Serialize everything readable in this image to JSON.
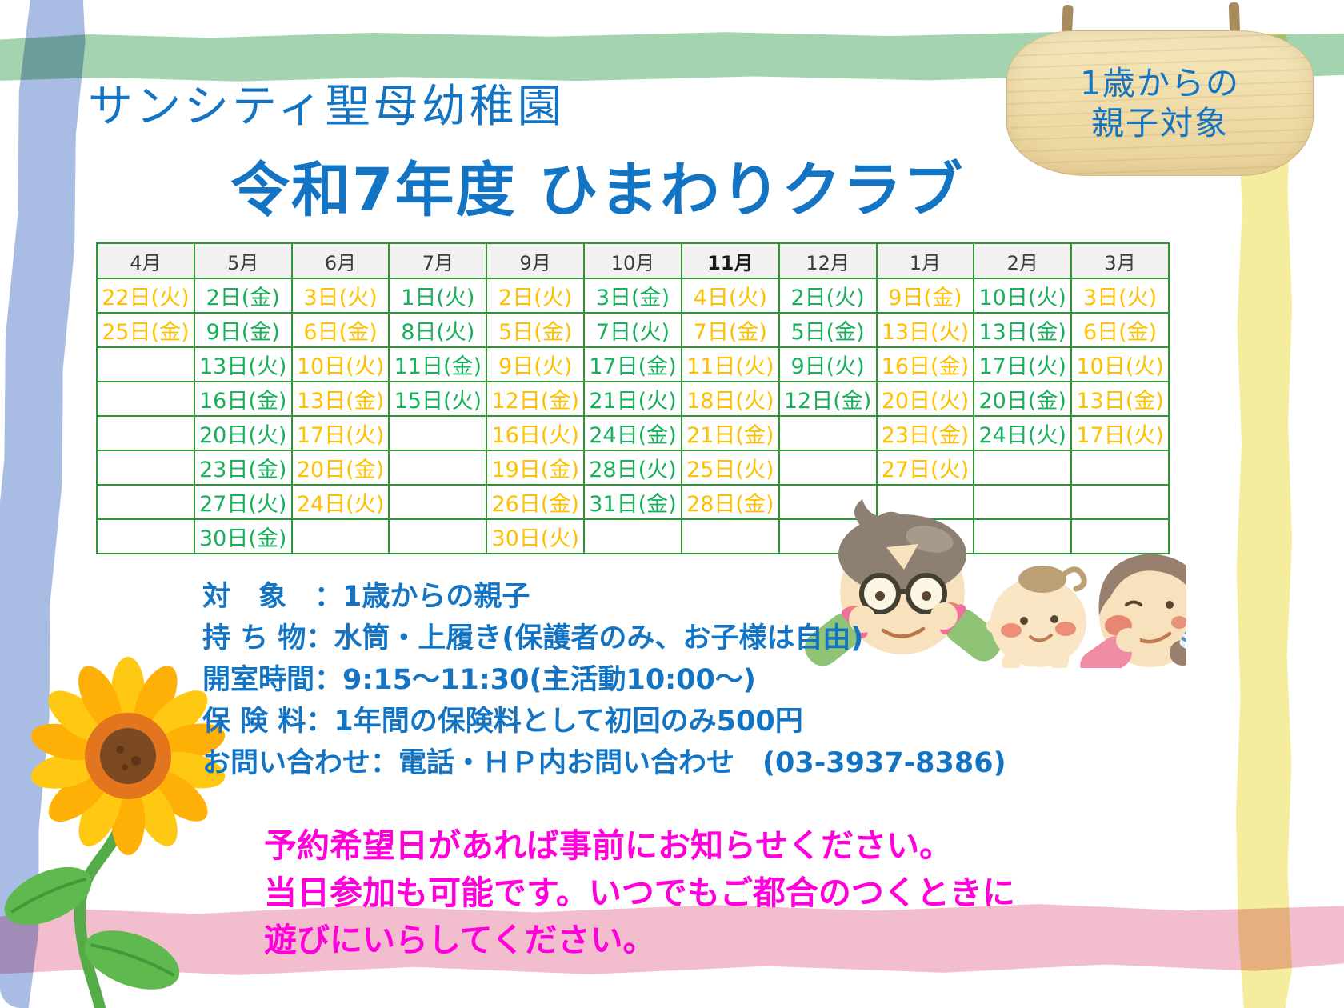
{
  "header": {
    "school_name": "サンシティ聖母幼稚園",
    "title": "令和7年度 ひまわりクラブ",
    "sign_line1": "1歳からの",
    "sign_line2": "親子対象"
  },
  "calendar": {
    "months": [
      "4月",
      "5月",
      "6月",
      "7月",
      "9月",
      "10月",
      "11月",
      "12月",
      "1月",
      "2月",
      "3月"
    ],
    "bold_month_index": 6,
    "rows": [
      [
        {
          "d": "22日(火)",
          "c": "o"
        },
        {
          "d": "2日(金)",
          "c": "g"
        },
        {
          "d": "3日(火)",
          "c": "o"
        },
        {
          "d": "1日(火)",
          "c": "g"
        },
        {
          "d": "2日(火)",
          "c": "o"
        },
        {
          "d": "3日(金)",
          "c": "g"
        },
        {
          "d": "4日(火)",
          "c": "o"
        },
        {
          "d": "2日(火)",
          "c": "g"
        },
        {
          "d": "9日(金)",
          "c": "o"
        },
        {
          "d": "10日(火)",
          "c": "g"
        },
        {
          "d": "3日(火)",
          "c": "o"
        }
      ],
      [
        {
          "d": "25日(金)",
          "c": "o"
        },
        {
          "d": "9日(金)",
          "c": "g"
        },
        {
          "d": "6日(金)",
          "c": "o"
        },
        {
          "d": "8日(火)",
          "c": "g"
        },
        {
          "d": "5日(金)",
          "c": "o"
        },
        {
          "d": "7日(火)",
          "c": "g"
        },
        {
          "d": "7日(金)",
          "c": "o"
        },
        {
          "d": "5日(金)",
          "c": "g"
        },
        {
          "d": "13日(火)",
          "c": "o"
        },
        {
          "d": "13日(金)",
          "c": "g"
        },
        {
          "d": "6日(金)",
          "c": "o"
        }
      ],
      [
        null,
        {
          "d": "13日(火)",
          "c": "g"
        },
        {
          "d": "10日(火)",
          "c": "o"
        },
        {
          "d": "11日(金)",
          "c": "g"
        },
        {
          "d": "9日(火)",
          "c": "o"
        },
        {
          "d": "17日(金)",
          "c": "g"
        },
        {
          "d": "11日(火)",
          "c": "o"
        },
        {
          "d": "9日(火)",
          "c": "g"
        },
        {
          "d": "16日(金)",
          "c": "o"
        },
        {
          "d": "17日(火)",
          "c": "g"
        },
        {
          "d": "10日(火)",
          "c": "o"
        }
      ],
      [
        null,
        {
          "d": "16日(金)",
          "c": "g"
        },
        {
          "d": "13日(金)",
          "c": "o"
        },
        {
          "d": "15日(火)",
          "c": "g"
        },
        {
          "d": "12日(金)",
          "c": "o"
        },
        {
          "d": "21日(火)",
          "c": "g"
        },
        {
          "d": "18日(火)",
          "c": "o"
        },
        {
          "d": "12日(金)",
          "c": "g"
        },
        {
          "d": "20日(火)",
          "c": "o"
        },
        {
          "d": "20日(金)",
          "c": "g"
        },
        {
          "d": "13日(金)",
          "c": "o"
        }
      ],
      [
        null,
        {
          "d": "20日(火)",
          "c": "g"
        },
        {
          "d": "17日(火)",
          "c": "o"
        },
        null,
        {
          "d": "16日(火)",
          "c": "o"
        },
        {
          "d": "24日(金)",
          "c": "g"
        },
        {
          "d": "21日(金)",
          "c": "o"
        },
        null,
        {
          "d": "23日(金)",
          "c": "o"
        },
        {
          "d": "24日(火)",
          "c": "g"
        },
        {
          "d": "17日(火)",
          "c": "o"
        }
      ],
      [
        null,
        {
          "d": "23日(金)",
          "c": "g"
        },
        {
          "d": "20日(金)",
          "c": "o"
        },
        null,
        {
          "d": "19日(金)",
          "c": "o"
        },
        {
          "d": "28日(火)",
          "c": "g"
        },
        {
          "d": "25日(火)",
          "c": "o"
        },
        null,
        {
          "d": "27日(火)",
          "c": "o"
        },
        null,
        null
      ],
      [
        null,
        {
          "d": "27日(火)",
          "c": "g"
        },
        {
          "d": "24日(火)",
          "c": "o"
        },
        null,
        {
          "d": "26日(金)",
          "c": "o"
        },
        {
          "d": "31日(金)",
          "c": "g"
        },
        {
          "d": "28日(金)",
          "c": "o"
        },
        null,
        null,
        null,
        null
      ],
      [
        null,
        {
          "d": "30日(金)",
          "c": "g"
        },
        null,
        null,
        {
          "d": "30日(火)",
          "c": "o"
        },
        null,
        null,
        null,
        null,
        null,
        null
      ]
    ]
  },
  "info_lines": [
    "対　象　：1歳からの親子",
    "持 ち 物：水筒・上履き(保護者のみ、お子様は自由)",
    "開室時間：9:15～11:30(主活動10:00～)",
    "保 険 料：1年間の保険料として初回のみ500円",
    "お問い合わせ：電話・ＨＰ内お問い合わせ　(03-3937-8386)"
  ],
  "notice_lines": [
    "予約希望日があれば事前にお知らせください。",
    "当日参加も可能です。いつでもご都合のつくときに",
    "遊びにいらしてください。"
  ],
  "theme": {
    "blue": "#1474C4",
    "orange": "#FFC000",
    "green": "#17B05B",
    "table_border": "#2E9732",
    "header_bg": "#F1F1F1",
    "header_text": "#3C3C3C",
    "magenta": "#FF00DB",
    "stripe_green": "#A4D4AF",
    "stripe_blue": "#A9BCE3",
    "stripe_yellow": "#F3ED9D",
    "stripe_pink": "#F2BECD"
  }
}
